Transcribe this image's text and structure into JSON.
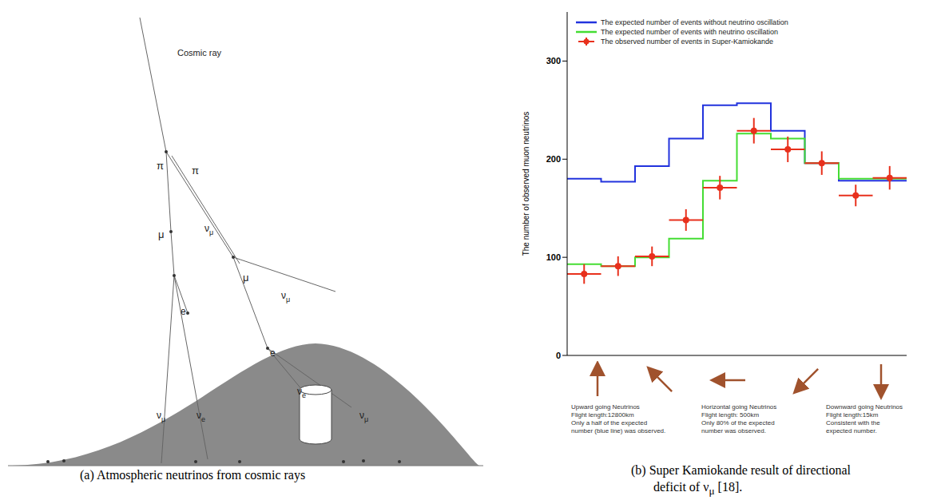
{
  "diagram": {
    "labels": [
      "Cosmic ray",
      "π",
      "π",
      "μ",
      "νμ",
      "μ",
      "νμ",
      "e",
      "e",
      "νμ",
      "νe",
      "νe",
      "νμ"
    ],
    "caption": "(a) Atmospheric neutrinos from cosmic rays"
  },
  "chart_data": {
    "type": "histogram",
    "y_label": "The number of observed muon neutrinos",
    "bins": [
      0,
      1,
      2,
      3,
      4,
      5,
      6,
      7,
      8,
      9,
      10
    ],
    "ylim": [
      0,
      350
    ],
    "yticks": [
      0,
      100,
      200,
      300
    ],
    "grid": false,
    "legend": "upper left",
    "tick_labels": "y",
    "series": [
      {
        "name": "The expected number of events without neutrino oscillation",
        "type": "line",
        "line_style": "step",
        "color": "#2233dd",
        "values": [
          180,
          177,
          193,
          221,
          255,
          257,
          229,
          196,
          178,
          178
        ]
      },
      {
        "name": "The expected number of events with neutrino oscillation",
        "type": "line",
        "line_style": "step",
        "color": "#44dd33",
        "values": [
          93,
          91,
          100,
          119,
          178,
          226,
          221,
          196,
          180,
          180
        ]
      },
      {
        "name": "The observed number of events in Super-Kamiokande",
        "type": "scatter",
        "marker": "circle",
        "color": "#e8301c",
        "values": [
          83,
          91,
          101,
          138,
          171,
          229,
          210,
          196,
          163,
          181
        ],
        "errors": [
          10,
          10,
          10,
          11,
          12,
          13,
          13,
          12,
          11,
          12
        ]
      }
    ],
    "annotations": [
      [
        "Upward going Neutrinos",
        "Flight length:12800km",
        "Only a half of the expected",
        "number (blue line) was observed."
      ],
      [
        "Horizontal going Neutrinos",
        "Flight length: 500km",
        "Only 80% of the expected",
        "number was observed."
      ],
      [
        "Downward going Neutrinos",
        "Flight length:15km",
        "Consistent with the",
        "expected number."
      ]
    ]
  },
  "caption_b": [
    "(b) Super Kamiokande result of directional",
    "deficit of νμ [18]."
  ]
}
